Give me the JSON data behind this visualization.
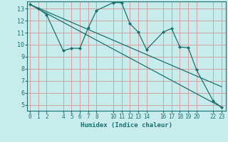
{
  "xlabel": "Humidex (Indice chaleur)",
  "bg_color": "#c8ecec",
  "grid_color": "#d4a0a0",
  "line_color": "#1a7070",
  "xticks": [
    0,
    1,
    2,
    4,
    5,
    6,
    7,
    8,
    10,
    11,
    12,
    13,
    14,
    16,
    17,
    18,
    19,
    20,
    22,
    23
  ],
  "yticks": [
    5,
    6,
    7,
    8,
    9,
    10,
    11,
    12,
    13
  ],
  "xlim": [
    -0.3,
    23.5
  ],
  "ylim": [
    4.5,
    13.6
  ],
  "series1_x": [
    0,
    1,
    2,
    4,
    5,
    6,
    7,
    8,
    10,
    11,
    12,
    13,
    14,
    16,
    17,
    18,
    19,
    20,
    22,
    23
  ],
  "series1_y": [
    13.35,
    13.0,
    12.5,
    9.5,
    9.7,
    9.7,
    11.4,
    12.85,
    13.5,
    13.5,
    11.75,
    11.05,
    9.6,
    11.05,
    11.35,
    9.8,
    9.75,
    7.9,
    5.3,
    4.8
  ],
  "series2_x": [
    0,
    23
  ],
  "series2_y": [
    13.35,
    4.8
  ],
  "series3_x": [
    0,
    23
  ],
  "series3_y": [
    13.35,
    6.5
  ]
}
